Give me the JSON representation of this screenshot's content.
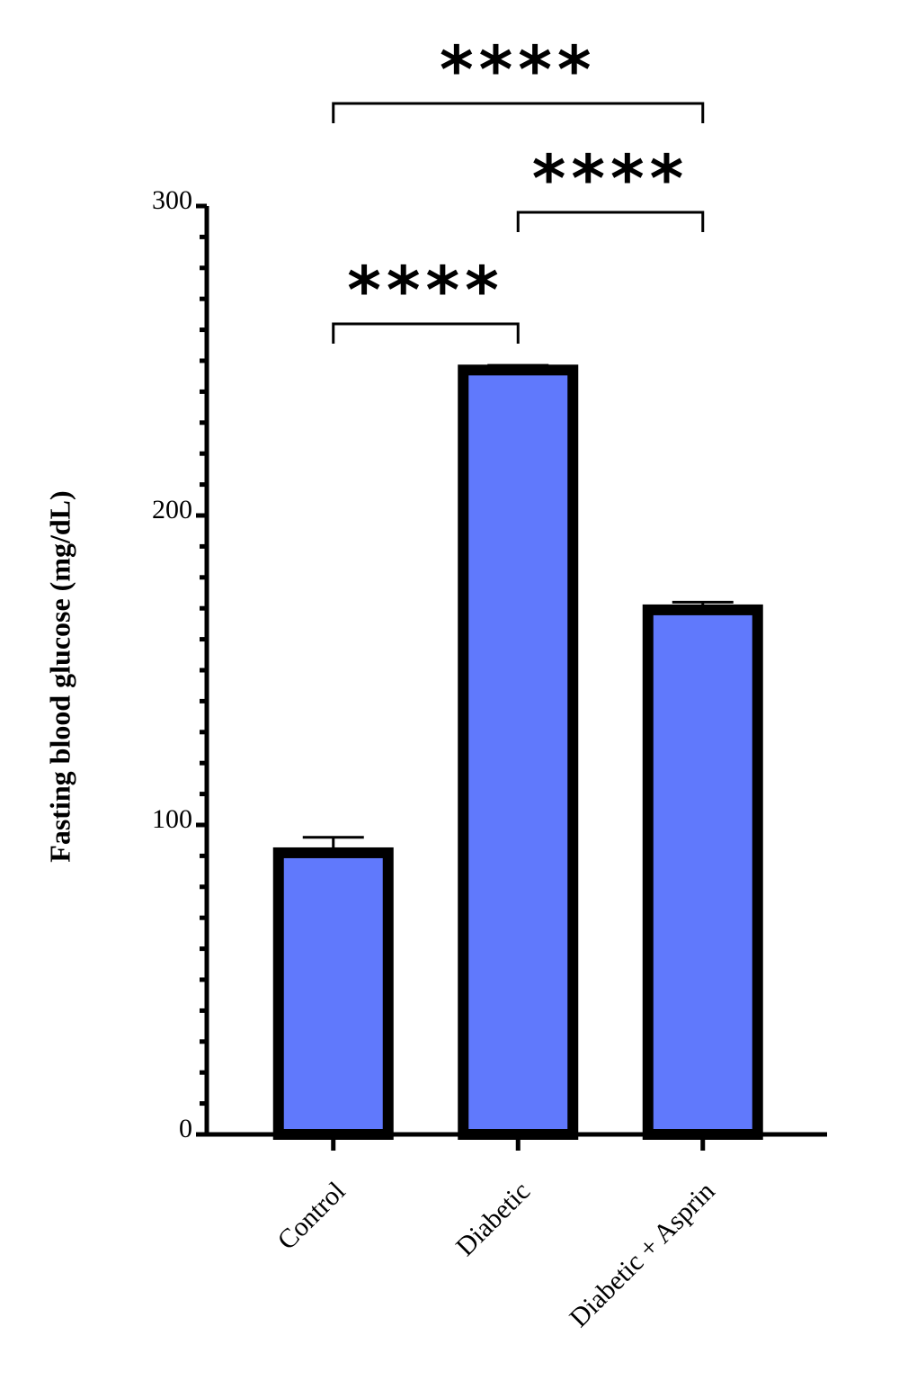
{
  "chart_data": {
    "type": "bar",
    "y_label": "Fasting blood glucose (mg/dL)",
    "categories": [
      "Control",
      "Diabetic",
      "Diabetic + Asprin"
    ],
    "values": [
      91,
      247,
      169.5
    ],
    "errors": [
      5,
      1.5,
      2.5
    ],
    "color": "#6079fc",
    "ylim": [
      0,
      300
    ],
    "yticks": [
      0,
      100,
      200,
      300
    ],
    "yminor_ticks": [
      10,
      20,
      30,
      40,
      50,
      60,
      70,
      80,
      90,
      110,
      120,
      130,
      140,
      150,
      160,
      170,
      180,
      190,
      210,
      220,
      230,
      240,
      250,
      260,
      270,
      280,
      290
    ],
    "annotations": [
      {
        "text": "****",
        "from": 0,
        "to": 1
      },
      {
        "text": "****",
        "from": 1,
        "to": 2
      },
      {
        "text": "****",
        "from": 0,
        "to": 2
      }
    ]
  }
}
